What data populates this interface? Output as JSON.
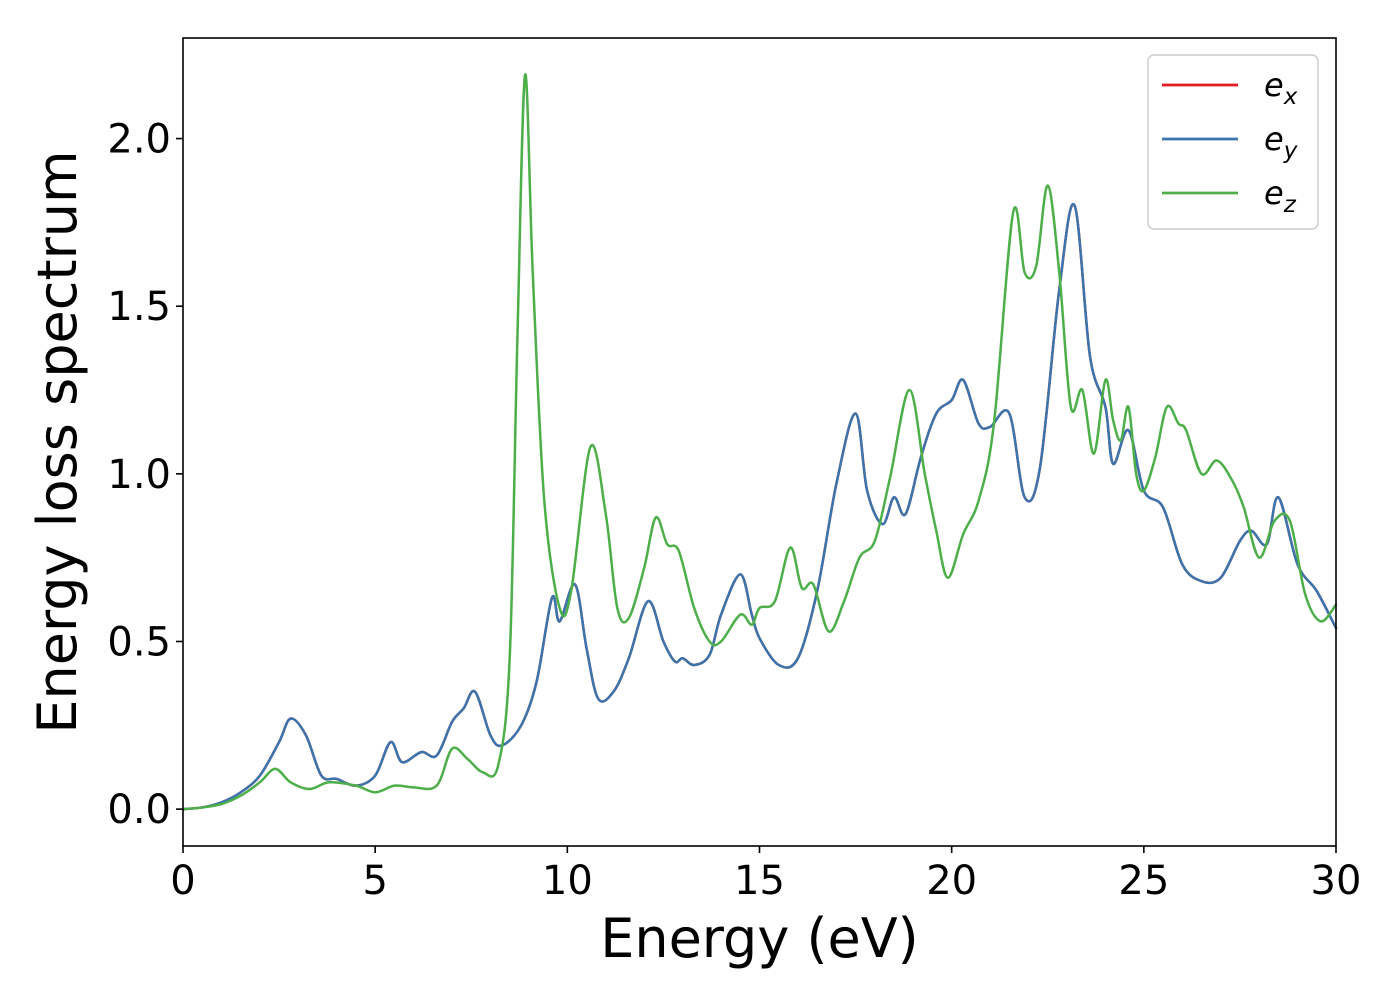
{
  "chart_data": {
    "type": "line",
    "xlabel": "Energy (eV)",
    "ylabel": "Energy loss spectrum",
    "xlim": [
      0,
      30
    ],
    "ylim": [
      -0.11,
      2.3
    ],
    "xticks": [
      0,
      5,
      10,
      15,
      20,
      25,
      30
    ],
    "xtick_labels": [
      "0",
      "5",
      "10",
      "15",
      "20",
      "25",
      "30"
    ],
    "yticks": [
      0.0,
      0.5,
      1.0,
      1.5,
      2.0
    ],
    "ytick_labels": [
      "0.0",
      "0.5",
      "1.0",
      "1.5",
      "2.0"
    ],
    "grid": false,
    "legend_position": "top-right",
    "series": [
      {
        "name": "e_x",
        "legend_main": "e",
        "legend_sub": "x",
        "color": "#e41a1c",
        "x": [
          0,
          0.5,
          1,
          1.5,
          2,
          2.5,
          2.8,
          3.2,
          3.6,
          4,
          4.5,
          5,
          5.4,
          5.7,
          6.2,
          6.6,
          7,
          7.3,
          7.6,
          8,
          8.3,
          8.8,
          9.2,
          9.6,
          9.8,
          10.2,
          10.5,
          10.8,
          11.2,
          11.6,
          12.1,
          12.5,
          12.8,
          13,
          13.3,
          13.7,
          14,
          14.5,
          14.8,
          15,
          15.5,
          16,
          16.5,
          17,
          17.5,
          17.8,
          18.2,
          18.5,
          18.8,
          19.2,
          19.6,
          20,
          20.3,
          20.7,
          21,
          21.5,
          21.9,
          22.3,
          22.8,
          23.2,
          23.6,
          24,
          24.2,
          24.6,
          25,
          25.5,
          26,
          26.5,
          27,
          27.5,
          27.8,
          28.2,
          28.5,
          29,
          29.5,
          30
        ],
        "values": [
          0,
          0.005,
          0.02,
          0.05,
          0.1,
          0.2,
          0.27,
          0.22,
          0.1,
          0.09,
          0.07,
          0.1,
          0.2,
          0.14,
          0.17,
          0.16,
          0.26,
          0.3,
          0.35,
          0.22,
          0.19,
          0.25,
          0.38,
          0.63,
          0.56,
          0.67,
          0.48,
          0.33,
          0.35,
          0.45,
          0.62,
          0.5,
          0.44,
          0.45,
          0.43,
          0.46,
          0.58,
          0.7,
          0.58,
          0.51,
          0.43,
          0.45,
          0.65,
          0.97,
          1.18,
          0.95,
          0.85,
          0.93,
          0.88,
          1.05,
          1.18,
          1.22,
          1.28,
          1.15,
          1.14,
          1.18,
          0.93,
          1.02,
          1.55,
          1.8,
          1.35,
          1.2,
          1.03,
          1.13,
          0.95,
          0.9,
          0.73,
          0.68,
          0.69,
          0.8,
          0.83,
          0.79,
          0.93,
          0.73,
          0.65,
          0.54
        ]
      },
      {
        "name": "e_y",
        "legend_main": "e",
        "legend_sub": "y",
        "color": "#3a75ad",
        "x": [
          0,
          0.5,
          1,
          1.5,
          2,
          2.5,
          2.8,
          3.2,
          3.6,
          4,
          4.5,
          5,
          5.4,
          5.7,
          6.2,
          6.6,
          7,
          7.3,
          7.6,
          8,
          8.3,
          8.8,
          9.2,
          9.6,
          9.8,
          10.2,
          10.5,
          10.8,
          11.2,
          11.6,
          12.1,
          12.5,
          12.8,
          13,
          13.3,
          13.7,
          14,
          14.5,
          14.8,
          15,
          15.5,
          16,
          16.5,
          17,
          17.5,
          17.8,
          18.2,
          18.5,
          18.8,
          19.2,
          19.6,
          20,
          20.3,
          20.7,
          21,
          21.5,
          21.9,
          22.3,
          22.8,
          23.2,
          23.6,
          24,
          24.2,
          24.6,
          25,
          25.5,
          26,
          26.5,
          27,
          27.5,
          27.8,
          28.2,
          28.5,
          29,
          29.5,
          30
        ],
        "values": [
          0,
          0.005,
          0.02,
          0.05,
          0.1,
          0.2,
          0.27,
          0.22,
          0.1,
          0.09,
          0.07,
          0.1,
          0.2,
          0.14,
          0.17,
          0.16,
          0.26,
          0.3,
          0.35,
          0.22,
          0.19,
          0.25,
          0.38,
          0.63,
          0.56,
          0.67,
          0.48,
          0.33,
          0.35,
          0.45,
          0.62,
          0.5,
          0.44,
          0.45,
          0.43,
          0.46,
          0.58,
          0.7,
          0.58,
          0.51,
          0.43,
          0.45,
          0.65,
          0.97,
          1.18,
          0.95,
          0.85,
          0.93,
          0.88,
          1.05,
          1.18,
          1.22,
          1.28,
          1.15,
          1.14,
          1.18,
          0.93,
          1.02,
          1.55,
          1.8,
          1.35,
          1.2,
          1.03,
          1.13,
          0.95,
          0.9,
          0.73,
          0.68,
          0.69,
          0.8,
          0.83,
          0.79,
          0.93,
          0.73,
          0.65,
          0.54
        ]
      },
      {
        "name": "e_z",
        "legend_main": "e",
        "legend_sub": "z",
        "color": "#4daf4a",
        "x": [
          0,
          0.5,
          1,
          1.5,
          2,
          2.4,
          2.8,
          3.3,
          3.8,
          4.5,
          5,
          5.5,
          6,
          6.6,
          7,
          7.4,
          7.8,
          8.2,
          8.5,
          8.7,
          8.9,
          9.1,
          9.4,
          9.8,
          10.1,
          10.6,
          11,
          11.3,
          11.6,
          12,
          12.3,
          12.6,
          12.9,
          13.3,
          13.7,
          14,
          14.5,
          14.8,
          15,
          15.4,
          15.8,
          16.1,
          16.4,
          16.8,
          17.2,
          17.6,
          18,
          18.4,
          18.9,
          19.3,
          19.6,
          19.9,
          20.3,
          20.7,
          21.1,
          21.6,
          21.9,
          22.2,
          22.5,
          22.8,
          23.1,
          23.4,
          23.7,
          24,
          24.2,
          24.4,
          24.6,
          24.8,
          25,
          25.3,
          25.6,
          25.9,
          26.1,
          26.5,
          26.9,
          27.3,
          27.6,
          28,
          28.4,
          28.8,
          29.2,
          29.6,
          30
        ],
        "values": [
          0,
          0.005,
          0.015,
          0.04,
          0.08,
          0.12,
          0.08,
          0.06,
          0.08,
          0.07,
          0.05,
          0.07,
          0.065,
          0.07,
          0.18,
          0.15,
          0.11,
          0.13,
          0.45,
          1.4,
          2.19,
          1.6,
          0.92,
          0.6,
          0.65,
          1.08,
          0.88,
          0.6,
          0.57,
          0.72,
          0.87,
          0.79,
          0.77,
          0.6,
          0.5,
          0.5,
          0.58,
          0.55,
          0.6,
          0.62,
          0.78,
          0.66,
          0.67,
          0.53,
          0.62,
          0.75,
          0.8,
          0.99,
          1.25,
          1.0,
          0.83,
          0.69,
          0.82,
          0.92,
          1.15,
          1.78,
          1.6,
          1.62,
          1.86,
          1.6,
          1.2,
          1.25,
          1.06,
          1.28,
          1.16,
          1.1,
          1.2,
          1.0,
          0.95,
          1.05,
          1.2,
          1.15,
          1.13,
          1.0,
          1.04,
          0.98,
          0.9,
          0.75,
          0.86,
          0.86,
          0.64,
          0.56,
          0.61
        ]
      }
    ]
  }
}
